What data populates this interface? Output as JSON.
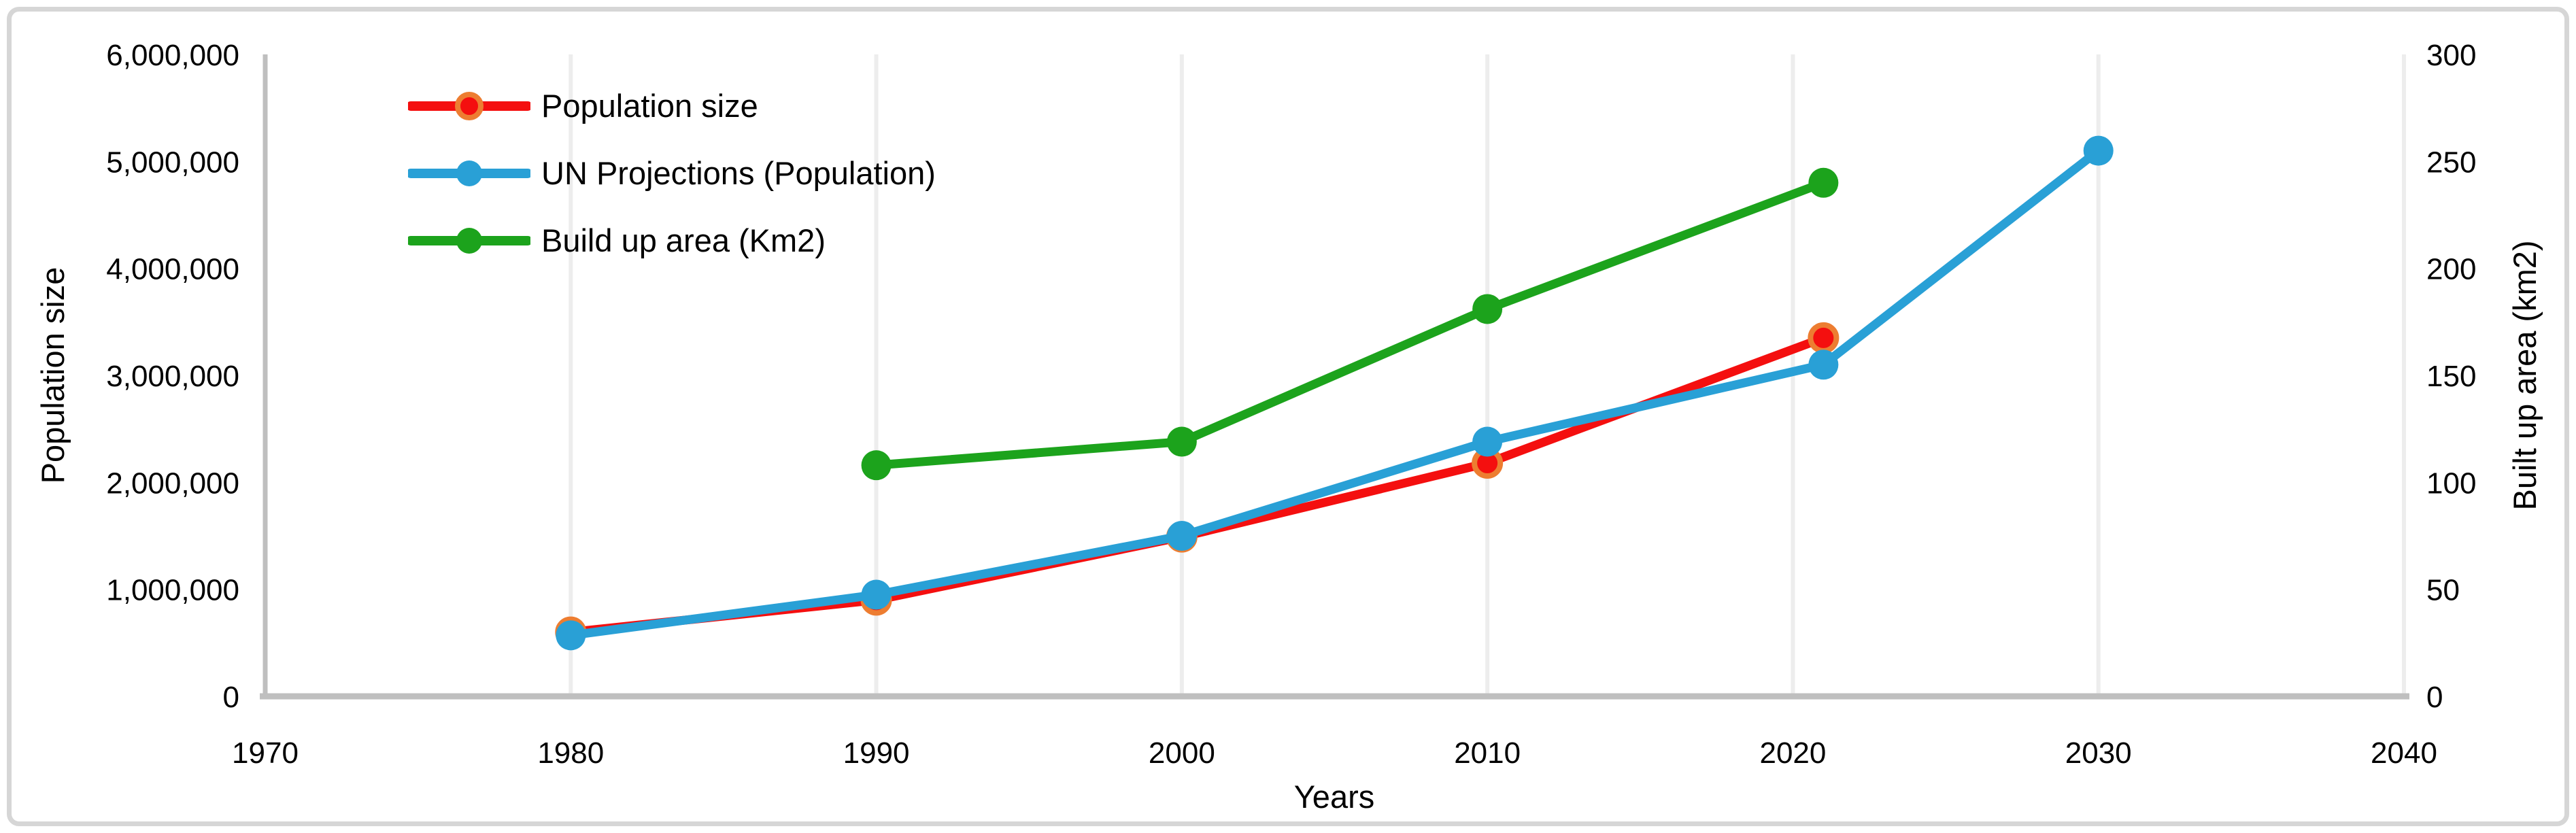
{
  "figure": {
    "background": "#ffffff",
    "card_border_color": "#d6d6d6",
    "axis_line_color": "#bfbfbf",
    "gridline_color": "#ededed",
    "text_color": "#000000"
  },
  "chart_data": {
    "type": "line",
    "title": "",
    "xlabel": "Years",
    "ylabel_left": "Population size",
    "ylabel_right": "Built up area (km2)",
    "grid": "vertical-only",
    "legend_position": "top-left-inside",
    "x_range": [
      1970,
      2040
    ],
    "x_tick_step": 10,
    "x_tick_labels": [
      "1970",
      "1980",
      "1990",
      "2000",
      "2010",
      "2020",
      "2030",
      "2040"
    ],
    "left_axis": {
      "label": "Population size",
      "range": [
        0,
        6000000
      ],
      "tick_step": 1000000,
      "tick_labels": [
        "0",
        "1,000,000",
        "2,000,000",
        "3,000,000",
        "4,000,000",
        "5,000,000",
        "6,000,000"
      ]
    },
    "right_axis": {
      "label": "Built up area (km2)",
      "range": [
        0,
        300
      ],
      "tick_step": 50,
      "tick_labels": [
        "0",
        "50",
        "100",
        "150",
        "200",
        "250",
        "300"
      ]
    },
    "series": [
      {
        "name": "Population size",
        "axis": "left",
        "color": "#f40f0f",
        "marker": {
          "fill": "#f40f0f",
          "ring": "#ed7d31"
        },
        "points": [
          {
            "x": 1980,
            "y": 600000
          },
          {
            "x": 1990,
            "y": 900000
          },
          {
            "x": 2000,
            "y": 1490000
          },
          {
            "x": 2010,
            "y": 2180000
          },
          {
            "x": 2021,
            "y": 3350000
          }
        ]
      },
      {
        "name": "UN Projections (Population)",
        "axis": "left",
        "color": "#29a0d6",
        "marker": {
          "fill": "#29a0d6"
        },
        "points": [
          {
            "x": 1980,
            "y": 570000
          },
          {
            "x": 1990,
            "y": 950000
          },
          {
            "x": 2000,
            "y": 1500000
          },
          {
            "x": 2010,
            "y": 2380000
          },
          {
            "x": 2021,
            "y": 3100000
          },
          {
            "x": 2030,
            "y": 5100000
          }
        ]
      },
      {
        "name": "Build up area (Km2)",
        "axis": "right",
        "color": "#1ca31c",
        "marker": {
          "fill": "#1ca31c"
        },
        "points": [
          {
            "x": 1990,
            "y": 108
          },
          {
            "x": 2000,
            "y": 119
          },
          {
            "x": 2010,
            "y": 181
          },
          {
            "x": 2021,
            "y": 240
          }
        ]
      }
    ]
  }
}
